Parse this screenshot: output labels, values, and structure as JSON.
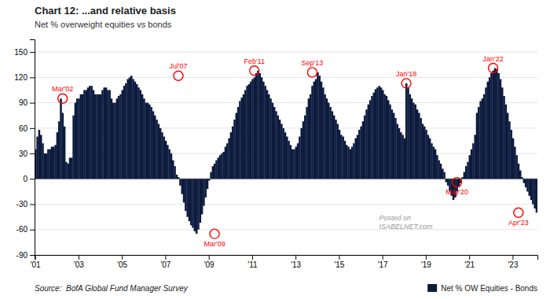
{
  "chart_data": {
    "type": "bar",
    "title": "Chart 12: ...and relative basis",
    "subtitle": "Net % overweight equities vs bonds",
    "source": "Source:  BofA Global Fund Manager Survey",
    "watermark": "Posted on\nISABELNET.com",
    "categories": [
      "'01",
      null,
      null,
      null,
      null,
      null,
      null,
      null,
      null,
      null,
      null,
      null,
      null,
      null,
      null,
      null,
      null,
      null,
      null,
      null,
      null,
      null,
      null,
      null,
      "'03",
      null,
      null,
      null,
      null,
      null,
      null,
      null,
      null,
      null,
      null,
      null,
      null,
      null,
      null,
      null,
      null,
      null,
      null,
      null,
      null,
      null,
      null,
      null,
      "'05",
      null,
      null,
      null,
      null,
      null,
      null,
      null,
      null,
      null,
      null,
      null,
      null,
      null,
      null,
      null,
      null,
      null,
      null,
      null,
      null,
      null,
      null,
      null,
      "'07",
      null,
      null,
      null,
      null,
      null,
      null,
      null,
      null,
      null,
      null,
      null,
      null,
      null,
      null,
      null,
      null,
      null,
      null,
      null,
      null,
      null,
      null,
      null,
      "'09",
      null,
      null,
      null,
      null,
      null,
      null,
      null,
      null,
      null,
      null,
      null,
      null,
      null,
      null,
      null,
      null,
      null,
      null,
      null,
      null,
      null,
      null,
      null,
      "'11",
      null,
      null,
      null,
      null,
      null,
      null,
      null,
      null,
      null,
      null,
      null,
      null,
      null,
      null,
      null,
      null,
      null,
      null,
      null,
      null,
      null,
      null,
      null,
      "'13",
      null,
      null,
      null,
      null,
      null,
      null,
      null,
      null,
      null,
      null,
      null,
      null,
      null,
      null,
      null,
      null,
      null,
      null,
      null,
      null,
      null,
      null,
      null,
      "'15",
      null,
      null,
      null,
      null,
      null,
      null,
      null,
      null,
      null,
      null,
      null,
      null,
      null,
      null,
      null,
      null,
      null,
      null,
      null,
      null,
      null,
      null,
      null,
      "'17",
      null,
      null,
      null,
      null,
      null,
      null,
      null,
      null,
      null,
      null,
      null,
      null,
      null,
      null,
      null,
      null,
      null,
      null,
      null,
      null,
      null,
      null,
      null,
      "'19",
      null,
      null,
      null,
      null,
      null,
      null,
      null,
      null,
      null,
      null,
      null,
      null,
      null,
      null,
      null,
      null,
      null,
      null,
      null,
      null,
      null,
      null,
      null,
      "'21",
      null,
      null,
      null,
      null,
      null,
      null,
      null,
      null,
      null,
      null,
      null,
      null,
      null,
      null,
      null,
      null,
      null,
      null,
      null,
      null,
      null,
      null,
      null,
      "'23",
      null,
      null,
      null,
      null,
      null,
      null,
      null,
      null,
      null,
      null,
      null,
      null,
      null
    ],
    "series": [
      {
        "name": "Net % OW Equities - Bonds",
        "color": "#0d1b3e",
        "values": [
          35,
          50,
          58,
          52,
          42,
          30,
          30,
          35,
          35,
          38,
          38,
          40,
          55,
          68,
          95,
          78,
          62,
          20,
          18,
          25,
          25,
          75,
          90,
          95,
          95,
          100,
          100,
          105,
          105,
          108,
          110,
          110,
          105,
          100,
          100,
          100,
          100,
          105,
          108,
          108,
          105,
          105,
          95,
          90,
          90,
          95,
          98,
          100,
          105,
          110,
          113,
          118,
          120,
          122,
          118,
          115,
          112,
          108,
          105,
          100,
          95,
          90,
          90,
          88,
          85,
          80,
          75,
          70,
          65,
          60,
          55,
          50,
          45,
          40,
          35,
          30,
          22,
          15,
          5,
          2,
          -8,
          -18,
          -28,
          -38,
          -45,
          -50,
          -55,
          -58,
          -62,
          -65,
          -60,
          -52,
          -42,
          -32,
          -22,
          -12,
          -2,
          8,
          15,
          18,
          22,
          25,
          28,
          30,
          32,
          38,
          42,
          48,
          55,
          62,
          70,
          78,
          85,
          92,
          96,
          100,
          105,
          110,
          112,
          115,
          118,
          120,
          125,
          128,
          125,
          120,
          115,
          110,
          105,
          100,
          95,
          90,
          85,
          80,
          75,
          70,
          65,
          60,
          55,
          50,
          45,
          40,
          35,
          35,
          38,
          42,
          50,
          60,
          68,
          75,
          85,
          95,
          100,
          110,
          115,
          118,
          126,
          122,
          115,
          108,
          100,
          95,
          90,
          85,
          80,
          75,
          70,
          65,
          58,
          52,
          50,
          45,
          40,
          38,
          35,
          38,
          42,
          48,
          52,
          58,
          62,
          68,
          75,
          82,
          88,
          93,
          98,
          102,
          106,
          108,
          110,
          108,
          105,
          100,
          98,
          93,
          88,
          82,
          78,
          72,
          65,
          60,
          55,
          52,
          48,
          113,
          108,
          100,
          95,
          90,
          88,
          82,
          78,
          72,
          65,
          62,
          58,
          52,
          48,
          42,
          38,
          35,
          28,
          22,
          18,
          12,
          8,
          -4,
          -8,
          -15,
          -20,
          -25,
          -22,
          -15,
          -10,
          -5,
          2,
          8,
          15,
          20,
          28,
          35,
          42,
          52,
          78,
          85,
          92,
          95,
          100,
          108,
          115,
          120,
          125,
          128,
          131,
          130,
          125,
          118,
          108,
          98,
          88,
          78,
          68,
          58,
          48,
          38,
          28,
          18,
          10,
          2,
          -5,
          -10,
          -15,
          -20,
          -25,
          -30,
          -35,
          -40
        ]
      }
    ],
    "annotations": [
      {
        "text": "Mar'02",
        "index": 15,
        "value": 95
      },
      {
        "text": "Jul'07",
        "index": 79,
        "value": 122
      },
      {
        "text": "Mar'09",
        "index": 99,
        "value": -65
      },
      {
        "text": "Feb'11",
        "index": 121,
        "value": 128
      },
      {
        "text": "Sep'13",
        "index": 153,
        "value": 126
      },
      {
        "text": "Jan'18",
        "index": 205,
        "value": 113
      },
      {
        "text": "May'20",
        "index": 233,
        "value": -4
      },
      {
        "text": "Jan'22",
        "index": 253,
        "value": 131
      },
      {
        "text": "Apr'23",
        "index": 267,
        "value": -40
      }
    ],
    "ylim": [
      -90,
      165
    ],
    "yticks": [
      -90,
      -60,
      -30,
      0,
      30,
      60,
      90,
      120,
      150
    ],
    "grid": true,
    "legend": "bottom"
  }
}
